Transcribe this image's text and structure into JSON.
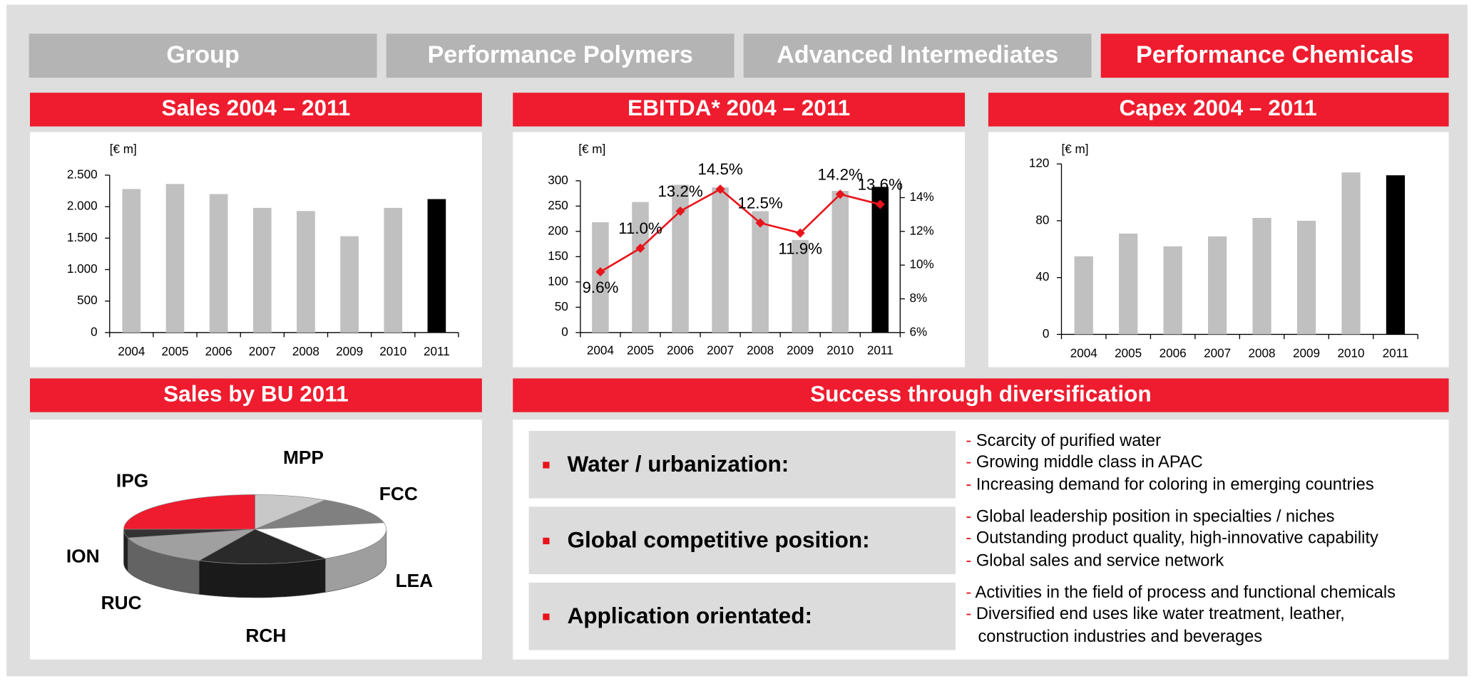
{
  "tabs": {
    "items": [
      "Group",
      "Performance Polymers",
      "Advanced Intermediates",
      "Performance Chemicals"
    ],
    "active": 3
  },
  "chart_data": [
    {
      "type": "bar",
      "title": "Sales 2004 – 2011",
      "y_label": "[€ m]",
      "categories": [
        "2004",
        "2005",
        "2006",
        "2007",
        "2008",
        "2009",
        "2010",
        "2011"
      ],
      "series": [
        {
          "type": "bar",
          "colors": [
            "#c0c0c0",
            "#c0c0c0",
            "#c0c0c0",
            "#c0c0c0",
            "#c0c0c0",
            "#c0c0c0",
            "#c0c0c0",
            "#000000"
          ],
          "values": [
            2280,
            2360,
            2200,
            1980,
            1930,
            1530,
            1980,
            2120
          ]
        }
      ],
      "ylim": [
        0,
        2500
      ],
      "yticks": [
        0,
        500,
        {
          "value": 1000,
          "label": "1.000"
        },
        {
          "value": 1500,
          "label": "1.500"
        },
        {
          "value": 2000,
          "label": "2.000"
        },
        {
          "value": 2500,
          "label": "2.500"
        }
      ]
    },
    {
      "type": "bar",
      "title": "EBITDA* 2004 – 2011",
      "y_label": "[€ m]",
      "categories": [
        "2004",
        "2005",
        "2006",
        "2007",
        "2008",
        "2009",
        "2010",
        "2011"
      ],
      "series": [
        {
          "type": "bar",
          "colors": [
            "#c0c0c0",
            "#c0c0c0",
            "#c0c0c0",
            "#c0c0c0",
            "#c0c0c0",
            "#c0c0c0",
            "#c0c0c0",
            "#000000"
          ],
          "values": [
            218,
            258,
            292,
            287,
            240,
            183,
            280,
            288
          ]
        },
        {
          "type": "line",
          "axis": "y2",
          "color": "#e8141c",
          "values": [
            9.6,
            11.0,
            13.2,
            14.5,
            12.5,
            11.9,
            14.2,
            13.6
          ],
          "value_labels": [
            "9.6%",
            "11.0%",
            "13.2%",
            "14.5%",
            "12.5%",
            "11.9%",
            "14.2%",
            "13.6%"
          ]
        }
      ],
      "ylim": [
        0,
        300
      ],
      "yticks": [
        0,
        50,
        100,
        150,
        200,
        250,
        300
      ],
      "y2lim": [
        6,
        15
      ],
      "y2ticks": [
        {
          "value": 6,
          "label": "6%"
        },
        {
          "value": 8,
          "label": "8%"
        },
        {
          "value": 10,
          "label": "10%"
        },
        {
          "value": 12,
          "label": "12%"
        },
        {
          "value": 14,
          "label": "14%"
        }
      ]
    },
    {
      "type": "bar",
      "title": "Capex 2004 – 2011",
      "y_label": "[€ m]",
      "categories": [
        "2004",
        "2005",
        "2006",
        "2007",
        "2008",
        "2009",
        "2010",
        "2011"
      ],
      "series": [
        {
          "type": "bar",
          "colors": [
            "#c0c0c0",
            "#c0c0c0",
            "#c0c0c0",
            "#c0c0c0",
            "#c0c0c0",
            "#c0c0c0",
            "#c0c0c0",
            "#000000"
          ],
          "values": [
            55,
            71,
            62,
            69,
            82,
            80,
            114,
            112
          ]
        }
      ],
      "ylim": [
        0,
        120
      ],
      "yticks": [
        0,
        40,
        80,
        120
      ]
    },
    {
      "type": "pie",
      "title": "Sales by BU 2011",
      "categories": [
        "MPP",
        "FCC",
        "LEA",
        "RCH",
        "RUC",
        "ION",
        "IPG"
      ],
      "values": [
        9,
        13,
        19,
        16,
        14,
        4,
        25
      ],
      "colors": [
        "#c8c8c8",
        "#808080",
        "#ffffff",
        "#2a2a2a",
        "#a0a0a0",
        "#333333",
        "#ee1c2e"
      ]
    }
  ],
  "diversification": {
    "title": "Success through diversification",
    "rows": [
      {
        "heading": "Water / urbanization:",
        "points": [
          "Scarcity of purified water",
          "Growing middle class in APAC",
          "Increasing demand for coloring in emerging countries"
        ]
      },
      {
        "heading": "Global competitive position:",
        "points": [
          "Global leadership position in specialties / niches",
          "Outstanding product quality, high-innovative capability",
          "Global sales and service network"
        ]
      },
      {
        "heading": "Application orientated:",
        "points": [
          "Activities in the field of process and functional chemicals",
          "Diversified end uses like water treatment, leather, construction industries and beverages"
        ]
      }
    ]
  }
}
